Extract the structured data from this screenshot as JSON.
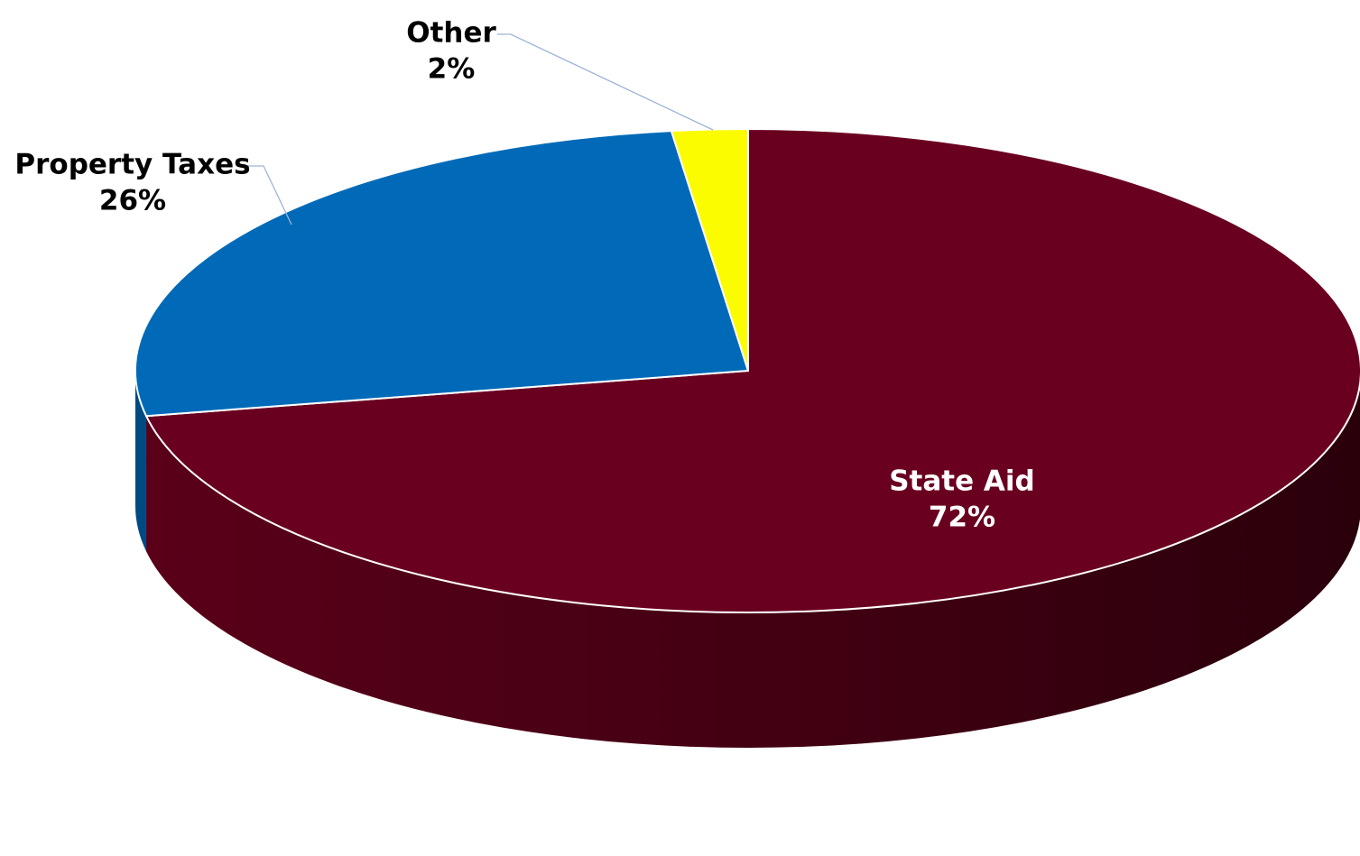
{
  "chart_data": {
    "type": "pie",
    "style": "3d-exploded-none",
    "title": "",
    "slices": [
      {
        "name": "State Aid",
        "value": 72,
        "label": "72%",
        "color": "#6a0020",
        "side_color": "#3c0012",
        "label_color": "#ffffff"
      },
      {
        "name": "Property Taxes",
        "value": 26,
        "label": "26%",
        "color": "#006ab8",
        "side_color": "#004a82",
        "label_color": "#000000"
      },
      {
        "name": "Other",
        "value": 2,
        "label": "2%",
        "color": "#fcfc00",
        "side_color": "#b8b800",
        "label_color": "#000000"
      }
    ],
    "legend": "none"
  }
}
